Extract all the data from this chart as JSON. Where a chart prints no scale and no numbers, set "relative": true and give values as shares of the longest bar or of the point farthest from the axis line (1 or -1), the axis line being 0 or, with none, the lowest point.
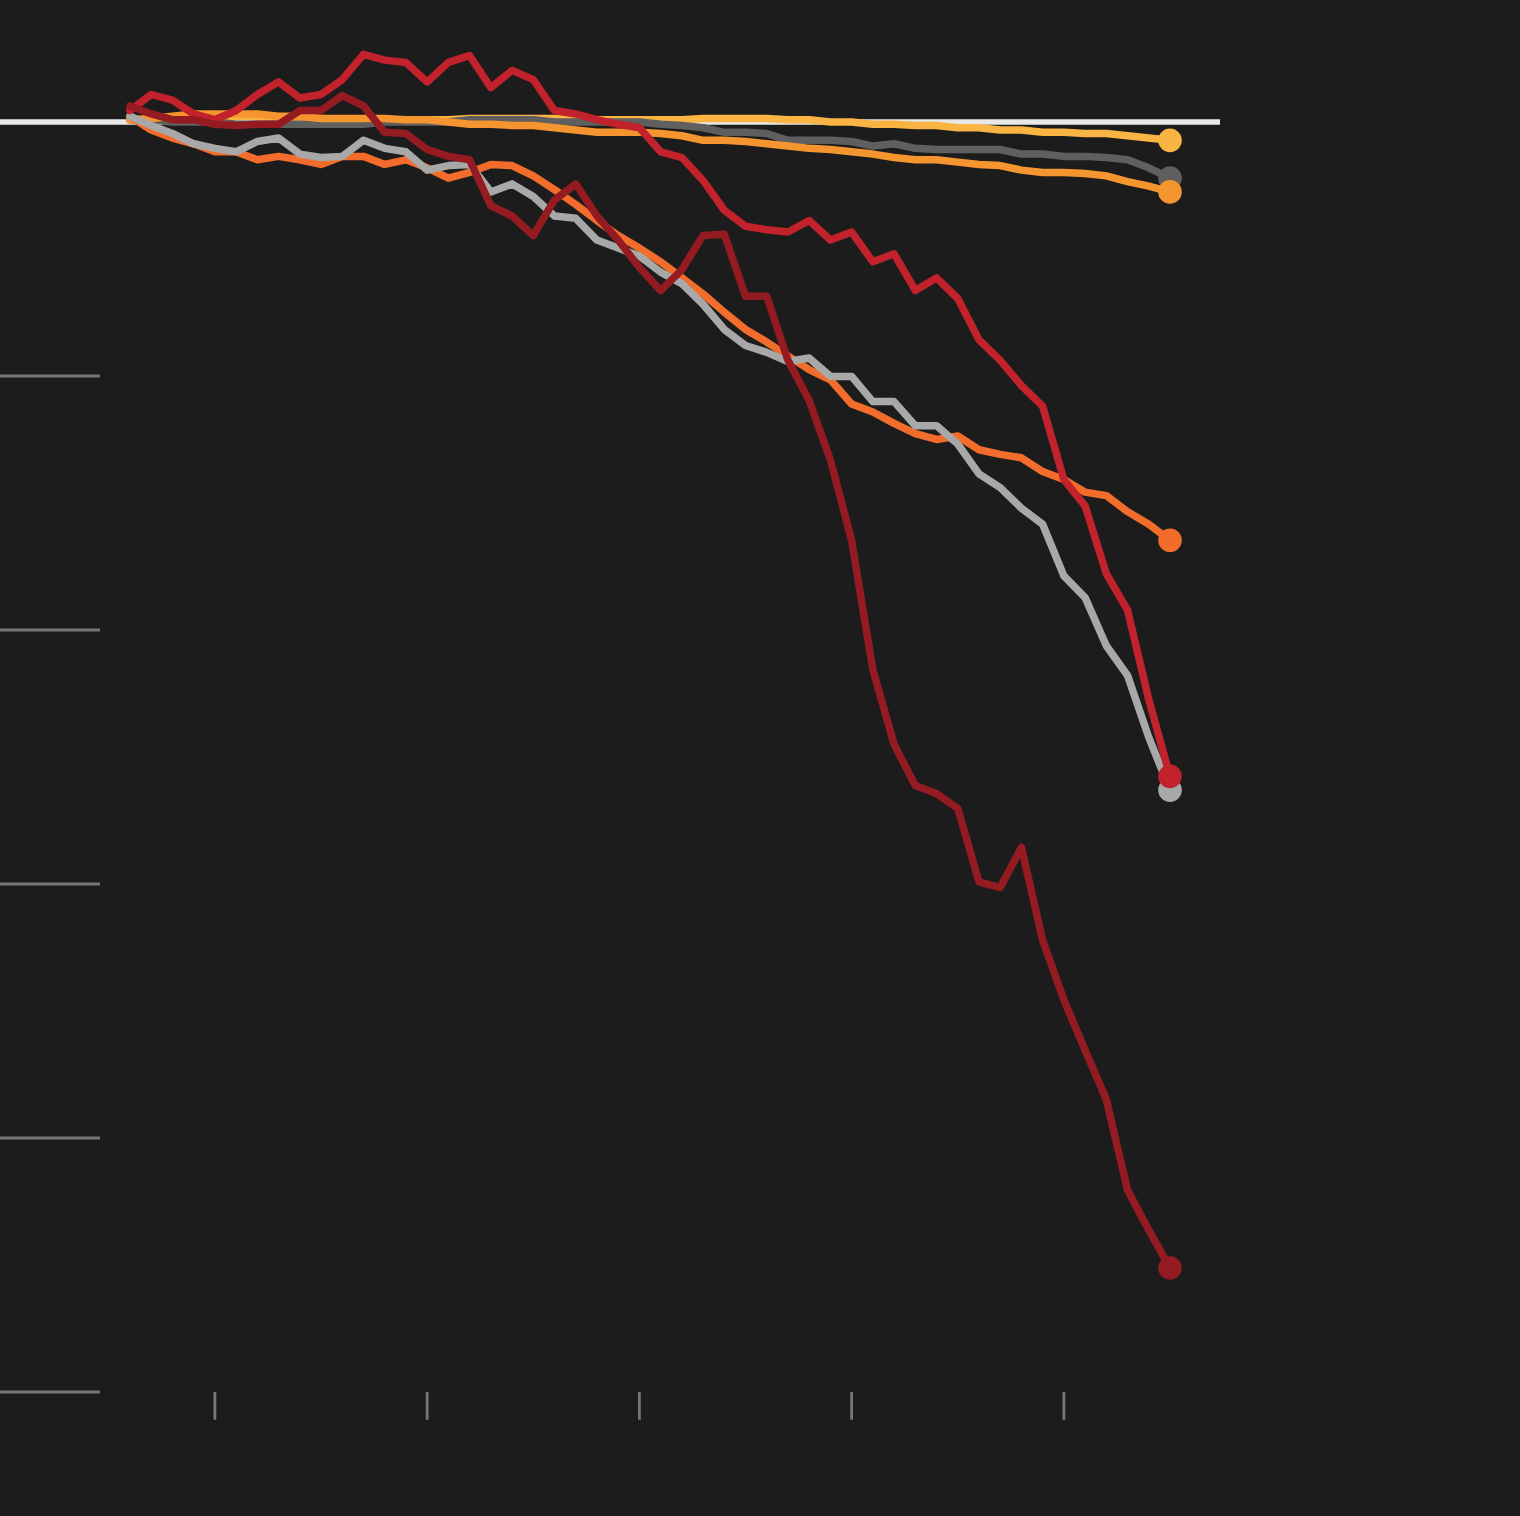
{
  "chart_data": {
    "type": "line",
    "relative": true,
    "categories": [
      null,
      null,
      null,
      null,
      null,
      null,
      null,
      null,
      null,
      null,
      null,
      null,
      null,
      null,
      null,
      null,
      null,
      null,
      null,
      null,
      null,
      null,
      null,
      null,
      null,
      null,
      null,
      null,
      null,
      null,
      null,
      null,
      null,
      null,
      null,
      null,
      null,
      null,
      null,
      null,
      null,
      null,
      null,
      null,
      null,
      null,
      null,
      null,
      null,
      null
    ],
    "line_style": "solid",
    "grid": false,
    "legend": false,
    "series": [
      {
        "color": "#f9b443",
        "values": [
          0.002,
          0,
          0.002,
          0.003,
          0.003,
          0.005,
          0.005,
          0.003,
          0.003,
          0.003,
          0.002,
          0.002,
          0.002,
          0.002,
          0.002,
          0.002,
          0.003,
          0.003,
          0.003,
          0.003,
          0.003,
          0.002,
          0.002,
          0.002,
          0.002,
          0.002,
          0.002,
          0.003,
          0.003,
          0.003,
          0.003,
          0.002,
          0.002,
          0,
          0,
          -0.002,
          -0.002,
          -0.003,
          -0.003,
          -0.005,
          -0.005,
          -0.007,
          -0.007,
          -0.009,
          -0.009,
          -0.01,
          -0.01,
          -0.012,
          -0.014,
          -0.016
        ]
      },
      {
        "color": "#5f5f5f",
        "values": [
          0.002,
          0.002,
          0,
          0,
          0,
          -0.002,
          -0.002,
          -0.002,
          -0.002,
          -0.002,
          -0.002,
          -0.002,
          0,
          0,
          0,
          0,
          0.002,
          0.002,
          0.002,
          0.002,
          0,
          0,
          0,
          0,
          0,
          -0.002,
          -0.003,
          -0.005,
          -0.009,
          -0.009,
          -0.01,
          -0.016,
          -0.016,
          -0.016,
          -0.017,
          -0.021,
          -0.019,
          -0.023,
          -0.024,
          -0.024,
          -0.024,
          -0.024,
          -0.028,
          -0.028,
          -0.03,
          -0.03,
          -0.031,
          -0.033,
          -0.04,
          -0.049
        ]
      },
      {
        "color": "#f5952f",
        "values": [
          0.002,
          0.003,
          0.005,
          0.007,
          0.007,
          0.007,
          0.007,
          0.005,
          0.005,
          0.003,
          0.003,
          0.003,
          0.003,
          0.002,
          0.002,
          0,
          -0.002,
          -0.002,
          -0.003,
          -0.003,
          -0.005,
          -0.007,
          -0.009,
          -0.009,
          -0.009,
          -0.01,
          -0.012,
          -0.016,
          -0.016,
          -0.017,
          -0.019,
          -0.021,
          -0.023,
          -0.024,
          -0.026,
          -0.028,
          -0.031,
          -0.033,
          -0.033,
          -0.035,
          -0.037,
          -0.038,
          -0.042,
          -0.044,
          -0.044,
          -0.045,
          -0.047,
          -0.052,
          -0.056,
          -0.061
        ]
      },
      {
        "color": "#f26d2b",
        "values": [
          0.005,
          -0.007,
          -0.014,
          -0.019,
          -0.026,
          -0.026,
          -0.033,
          -0.03,
          -0.033,
          -0.037,
          -0.03,
          -0.03,
          -0.037,
          -0.033,
          -0.04,
          -0.049,
          -0.044,
          -0.037,
          -0.038,
          -0.047,
          -0.059,
          -0.072,
          -0.086,
          -0.099,
          -0.11,
          -0.122,
          -0.136,
          -0.15,
          -0.166,
          -0.181,
          -0.192,
          -0.204,
          -0.216,
          -0.225,
          -0.246,
          -0.253,
          -0.263,
          -0.272,
          -0.277,
          -0.274,
          -0.286,
          -0.29,
          -0.293,
          -0.305,
          -0.312,
          -0.323,
          -0.326,
          -0.34,
          -0.351,
          -0.365
        ]
      },
      {
        "color": "#a8a8a8",
        "values": [
          0.005,
          -0.003,
          -0.01,
          -0.019,
          -0.023,
          -0.026,
          -0.017,
          -0.014,
          -0.028,
          -0.031,
          -0.03,
          -0.016,
          -0.023,
          -0.026,
          -0.042,
          -0.038,
          -0.037,
          -0.061,
          -0.054,
          -0.065,
          -0.082,
          -0.084,
          -0.103,
          -0.11,
          -0.117,
          -0.131,
          -0.141,
          -0.159,
          -0.181,
          -0.195,
          -0.201,
          -0.209,
          -0.206,
          -0.222,
          -0.222,
          -0.244,
          -0.244,
          -0.265,
          -0.265,
          -0.281,
          -0.307,
          -0.319,
          -0.337,
          -0.351,
          -0.396,
          -0.415,
          -0.457,
          -0.483,
          -0.537,
          -0.583
        ]
      },
      {
        "color": "#c1222b",
        "values": [
          0.01,
          0.024,
          0.019,
          0.007,
          0.002,
          0.01,
          0.024,
          0.035,
          0.021,
          0.024,
          0.037,
          0.059,
          0.054,
          0.052,
          0.035,
          0.052,
          0.058,
          0.03,
          0.045,
          0.037,
          0.01,
          0.007,
          0.002,
          -0.002,
          -0.005,
          -0.026,
          -0.031,
          -0.051,
          -0.077,
          -0.091,
          -0.094,
          -0.096,
          -0.086,
          -0.103,
          -0.096,
          -0.122,
          -0.115,
          -0.147,
          -0.136,
          -0.154,
          -0.19,
          -0.208,
          -0.23,
          -0.248,
          -0.312,
          -0.335,
          -0.394,
          -0.426,
          -0.504,
          -0.571
        ]
      },
      {
        "color": "#941b21",
        "values": [
          0.014,
          0.007,
          0.002,
          0.002,
          -0.002,
          -0.003,
          -0.002,
          -0.002,
          0.01,
          0.01,
          0.023,
          0.014,
          -0.009,
          -0.01,
          -0.024,
          -0.03,
          -0.033,
          -0.073,
          -0.082,
          -0.099,
          -0.068,
          -0.054,
          -0.082,
          -0.103,
          -0.127,
          -0.147,
          -0.129,
          -0.099,
          -0.098,
          -0.152,
          -0.152,
          -0.208,
          -0.243,
          -0.295,
          -0.365,
          -0.478,
          -0.543,
          -0.579,
          -0.586,
          -0.599,
          -0.663,
          -0.668,
          -0.633,
          -0.714,
          -0.766,
          -0.81,
          -0.853,
          -0.932,
          -0.967,
          -1
        ]
      }
    ]
  }
}
